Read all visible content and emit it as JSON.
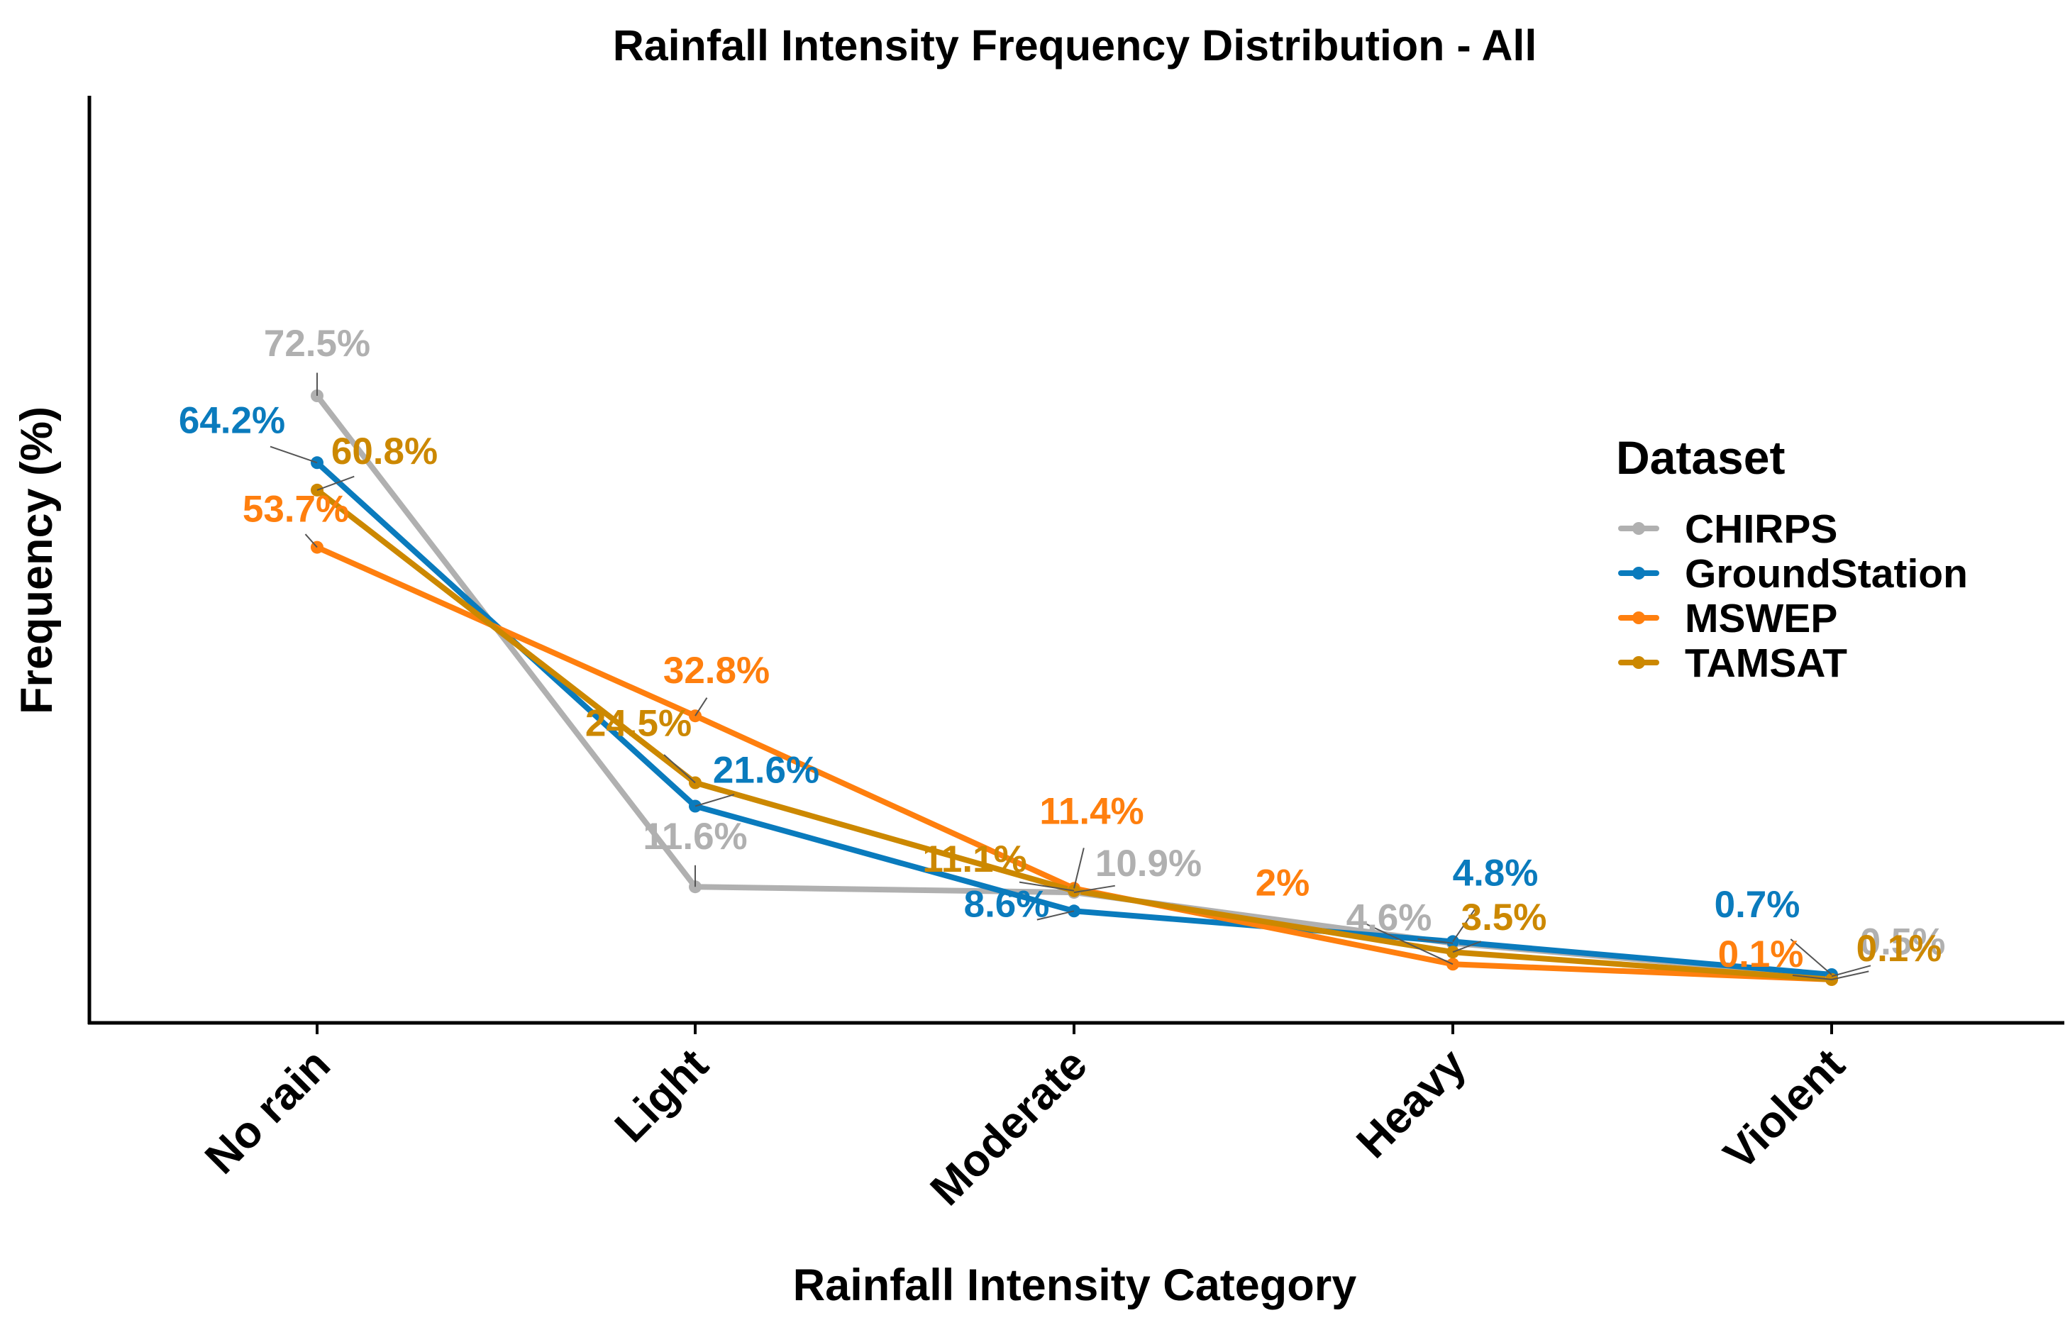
{
  "chart_data": {
    "type": "line",
    "title": "Rainfall Intensity Frequency Distribution - All",
    "xlabel": "Rainfall Intensity Category",
    "ylabel": "Frequency (%)",
    "categories": [
      "No rain",
      "Light",
      "Moderate",
      "Heavy",
      "Violent"
    ],
    "ylim": [
      -4,
      85
    ],
    "grid": false,
    "legend": {
      "title": "Dataset",
      "position": "right"
    },
    "series": [
      {
        "name": "CHIRPS",
        "color": "#b0b0b0",
        "values": [
          72.5,
          11.6,
          10.9,
          4.6,
          0.5
        ],
        "labels": [
          "72.5%",
          "11.6%",
          "10.9%",
          "4.6%",
          "0.5%"
        ]
      },
      {
        "name": "GroundStation",
        "color": "#0a7bbd",
        "values": [
          64.2,
          21.6,
          8.6,
          4.8,
          0.7
        ],
        "labels": [
          "64.2%",
          "21.6%",
          "8.6%",
          "4.8%",
          "0.7%"
        ]
      },
      {
        "name": "MSWEP",
        "color": "#ff7f0e",
        "values": [
          53.7,
          32.8,
          11.4,
          2,
          0.1
        ],
        "labels": [
          "53.7%",
          "32.8%",
          "11.4%",
          "2%",
          "0.1%"
        ]
      },
      {
        "name": "TAMSAT",
        "color": "#cc8800",
        "values": [
          60.8,
          24.5,
          11.1,
          3.5,
          0.1
        ],
        "labels": [
          "60.8%",
          "24.5%",
          "11.1%",
          "3.5%",
          "0.1%"
        ]
      }
    ]
  }
}
